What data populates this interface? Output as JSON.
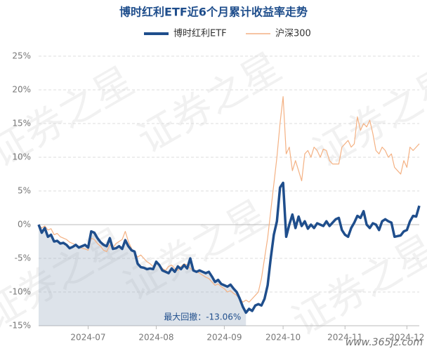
{
  "chart_data": {
    "type": "line",
    "title": "博时红利ETF近6个月累计收益率走势",
    "annotation": "最大回撤：-13.06%",
    "watermarks": [
      "证券之星",
      "www.365jz.com"
    ],
    "categories": [
      null,
      null,
      null,
      null,
      null,
      null,
      null,
      null,
      null,
      null,
      null,
      null,
      null,
      null,
      null,
      null,
      "2024-07",
      null,
      null,
      null,
      null,
      null,
      null,
      null,
      null,
      null,
      null,
      null,
      null,
      null,
      null,
      null,
      null,
      null,
      null,
      null,
      null,
      null,
      "2024-08",
      null,
      null,
      null,
      null,
      null,
      null,
      null,
      null,
      null,
      null,
      null,
      null,
      null,
      null,
      null,
      null,
      null,
      null,
      null,
      null,
      null,
      "2024-09",
      null,
      null,
      null,
      null,
      null,
      null,
      null,
      null,
      null,
      null,
      null,
      null,
      null,
      null,
      null,
      null,
      null,
      null,
      "2024-10",
      null,
      null,
      null,
      null,
      null,
      null,
      null,
      null,
      null,
      null,
      null,
      null,
      null,
      null,
      null,
      null,
      null,
      null,
      null,
      "2024-11",
      null,
      null,
      null,
      null,
      null,
      null,
      null,
      null,
      null,
      null,
      null,
      null,
      null,
      null,
      null,
      null,
      null,
      null,
      null,
      "2024-12",
      null,
      null,
      null,
      null
    ],
    "series": [
      {
        "name": "博时红利ETF",
        "color": "#1f4e8c",
        "values": [
          0,
          -1.2,
          -0.5,
          -1.8,
          -1.5,
          -2.5,
          -2.4,
          -2.8,
          -2.7,
          -3.0,
          -3.5,
          -3.3,
          -3.0,
          -3.4,
          -3.2,
          -3.0,
          -3.4,
          -1.0,
          -1.2,
          -2.0,
          -2.6,
          -3.0,
          -3.2,
          -2.0,
          -3.6,
          -3.5,
          -3.2,
          -3.6,
          -2.3,
          -3.2,
          -3.8,
          -4.0,
          -5.8,
          -6.3,
          -6.4,
          -6.6,
          -6.5,
          -6.6,
          -5.5,
          -6.0,
          -6.8,
          -7.0,
          -7.2,
          -6.5,
          -7.0,
          -6.2,
          -6.6,
          -6.0,
          -6.5,
          -5.0,
          -6.8,
          -7.0,
          -6.8,
          -7.0,
          -7.2,
          -7.0,
          -7.7,
          -8.5,
          -8.2,
          -8.8,
          -9.0,
          -9.2,
          -8.9,
          -9.5,
          -10.0,
          -11.0,
          -12.2,
          -13.06,
          -12.5,
          -12.8,
          -12.0,
          -11.8,
          -12.0,
          -11.0,
          -9.0,
          -5.0,
          -1.5,
          0.5,
          5.5,
          6.2,
          -1.8,
          0.0,
          1.5,
          -0.5,
          1.2,
          -0.2,
          0.5,
          -0.6,
          0.0,
          -0.5,
          0.2,
          0.0,
          -0.2,
          0.5,
          -0.2,
          0.3,
          0.8,
          1.0,
          -0.8,
          -1.5,
          -1.8,
          -0.5,
          0.3,
          1.3,
          1.0,
          2.0,
          0.0,
          -0.5,
          0.2,
          0.0,
          -0.8,
          0.5,
          0.8,
          0.5,
          0.3,
          -1.8,
          -1.7,
          -1.6,
          -1.0,
          -0.8,
          0.5,
          1.3,
          1.2,
          2.8
        ]
      },
      {
        "name": "沪深300",
        "color": "#f4b183",
        "values": [
          0,
          -0.5,
          -0.2,
          -0.8,
          -0.6,
          -1.5,
          -1.3,
          -1.8,
          -2.0,
          -2.2,
          -2.6,
          -2.8,
          -3.0,
          -3.2,
          -3.5,
          -3.6,
          -3.8,
          -2.0,
          -2.2,
          -2.8,
          -3.2,
          -3.8,
          -4.0,
          -3.0,
          -3.5,
          -2.8,
          -2.5,
          -2.2,
          -1.0,
          -2.5,
          -3.5,
          -4.2,
          -4.8,
          -4.5,
          -5.0,
          -5.5,
          -5.8,
          -6.2,
          -5.8,
          -6.0,
          -6.5,
          -6.8,
          -6.2,
          -6.0,
          -6.5,
          -6.8,
          -6.2,
          -5.8,
          -6.0,
          -6.5,
          -6.8,
          -7.0,
          -7.2,
          -7.5,
          -7.8,
          -8.0,
          -8.5,
          -9.0,
          -8.8,
          -9.2,
          -9.5,
          -10.0,
          -9.8,
          -10.2,
          -10.5,
          -11.0,
          -11.5,
          -11.2,
          -11.5,
          -11.0,
          -10.5,
          -10.0,
          -8.0,
          -5.0,
          -2.0,
          2.0,
          6.0,
          10.0,
          15.0,
          19.0,
          10.5,
          11.5,
          8.0,
          9.5,
          8.0,
          6.5,
          10.5,
          11.0,
          10.0,
          11.5,
          11.0,
          10.0,
          11.2,
          11.0,
          9.5,
          9.0,
          9.0,
          9.0,
          11.5,
          12.0,
          12.5,
          11.5,
          12.0,
          16.0,
          14.0,
          15.0,
          14.5,
          15.5,
          13.5,
          11.0,
          10.5,
          11.5,
          11.0,
          10.0,
          10.5,
          8.5,
          8.0,
          7.5,
          9.5,
          8.5,
          11.5,
          11.0,
          11.5,
          12.0
        ]
      }
    ],
    "ylim": [
      -15,
      25
    ],
    "yticks": [
      {
        "value": -15,
        "label": "-15%"
      },
      {
        "value": -10,
        "label": "-10%"
      },
      {
        "value": -5,
        "label": "-5%"
      },
      {
        "value": 0,
        "label": "0%"
      },
      {
        "value": 5,
        "label": "5%"
      },
      {
        "value": 10,
        "label": "10%"
      },
      {
        "value": 15,
        "label": "15%"
      },
      {
        "value": 20,
        "label": "20%"
      },
      {
        "value": 25,
        "label": "25%"
      }
    ],
    "grid": true,
    "legend": "top"
  }
}
